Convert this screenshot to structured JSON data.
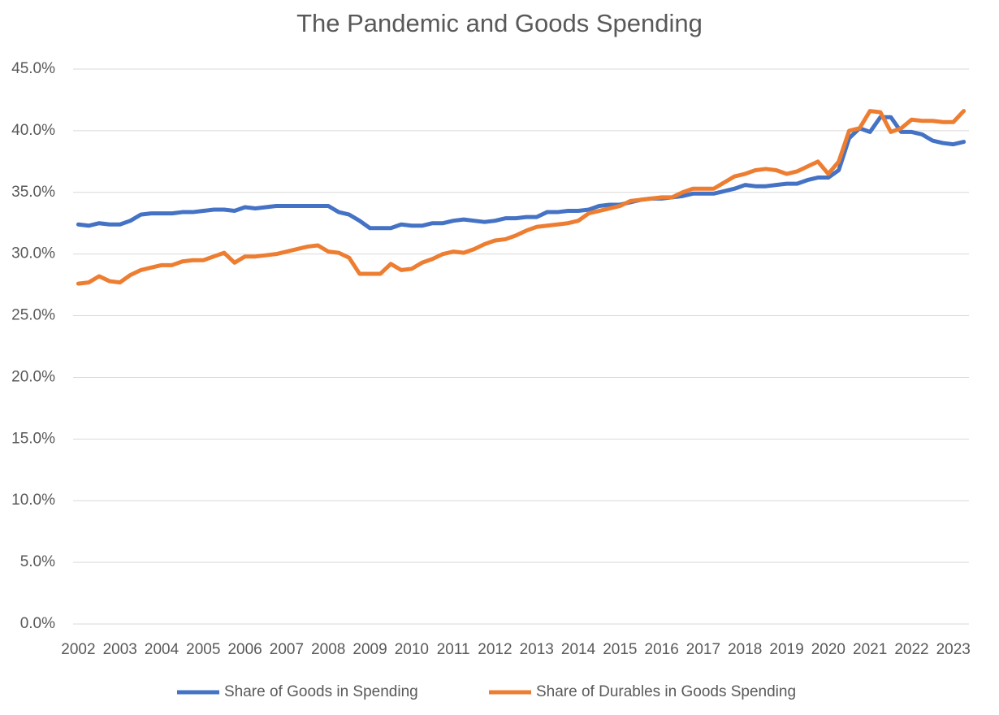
{
  "chart_data": {
    "type": "line",
    "title": "The Pandemic and Goods Spending",
    "categories": [
      "2002",
      null,
      null,
      null,
      "2003",
      null,
      null,
      null,
      "2004",
      null,
      null,
      null,
      "2005",
      null,
      null,
      null,
      "2006",
      null,
      null,
      null,
      "2007",
      null,
      null,
      null,
      "2008",
      null,
      null,
      null,
      "2009",
      null,
      null,
      null,
      "2010",
      null,
      null,
      null,
      "2011",
      null,
      null,
      null,
      "2012",
      null,
      null,
      null,
      "2013",
      null,
      null,
      null,
      "2014",
      null,
      null,
      null,
      "2015",
      null,
      null,
      null,
      "2016",
      null,
      null,
      null,
      "2017",
      null,
      null,
      null,
      "2018",
      null,
      null,
      null,
      "2019",
      null,
      null,
      null,
      "2020",
      null,
      null,
      null,
      "2021",
      null,
      null,
      null,
      "2022",
      null,
      null,
      null,
      "2023",
      null
    ],
    "series": [
      {
        "name": "Share of Goods in Spending",
        "color": "#4472c4",
        "values": [
          32.4,
          32.3,
          32.5,
          32.4,
          32.4,
          32.7,
          33.2,
          33.3,
          33.3,
          33.3,
          33.4,
          33.4,
          33.5,
          33.6,
          33.6,
          33.5,
          33.8,
          33.7,
          33.8,
          33.9,
          33.9,
          33.9,
          33.9,
          33.9,
          33.9,
          33.4,
          33.2,
          32.7,
          32.1,
          32.1,
          32.1,
          32.4,
          32.3,
          32.3,
          32.5,
          32.5,
          32.7,
          32.8,
          32.7,
          32.6,
          32.7,
          32.9,
          32.9,
          33.0,
          33.0,
          33.4,
          33.4,
          33.5,
          33.5,
          33.6,
          33.9,
          34.0,
          34.0,
          34.2,
          34.4,
          34.5,
          34.5,
          34.6,
          34.7,
          34.9,
          34.9,
          34.9,
          35.1,
          35.3,
          35.6,
          35.5,
          35.5,
          35.6,
          35.7,
          35.7,
          36.0,
          36.2,
          36.2,
          36.8,
          39.4,
          40.2,
          39.9,
          41.1,
          41.1,
          39.9,
          39.9,
          39.7,
          39.2,
          39.0,
          38.9,
          39.1
        ]
      },
      {
        "name": "Share of Durables in Goods Spending",
        "color": "#ed7d31",
        "values": [
          27.6,
          27.7,
          28.2,
          27.8,
          27.7,
          28.3,
          28.7,
          28.9,
          29.1,
          29.1,
          29.4,
          29.5,
          29.5,
          29.8,
          30.1,
          29.3,
          29.8,
          29.8,
          29.9,
          30.0,
          30.2,
          30.4,
          30.6,
          30.7,
          30.2,
          30.1,
          29.7,
          28.4,
          28.4,
          28.4,
          29.2,
          28.7,
          28.8,
          29.3,
          29.6,
          30.0,
          30.2,
          30.1,
          30.4,
          30.8,
          31.1,
          31.2,
          31.5,
          31.9,
          32.2,
          32.3,
          32.4,
          32.5,
          32.7,
          33.3,
          33.5,
          33.7,
          33.9,
          34.3,
          34.4,
          34.5,
          34.6,
          34.6,
          35.0,
          35.3,
          35.3,
          35.3,
          35.8,
          36.3,
          36.5,
          36.8,
          36.9,
          36.8,
          36.5,
          36.7,
          37.1,
          37.5,
          36.5,
          37.5,
          40.0,
          40.2,
          41.6,
          41.5,
          39.9,
          40.2,
          40.9,
          40.8,
          40.8,
          40.7,
          40.7,
          41.6
        ]
      }
    ],
    "ylim": [
      0,
      45
    ],
    "yticks": [
      {
        "value": 0,
        "label": "0.0%"
      },
      {
        "value": 5,
        "label": "5.0%"
      },
      {
        "value": 10,
        "label": "10.0%"
      },
      {
        "value": 15,
        "label": "15.0%"
      },
      {
        "value": 20,
        "label": "20.0%"
      },
      {
        "value": 25,
        "label": "25.0%"
      },
      {
        "value": 30,
        "label": "30.0%"
      },
      {
        "value": 35,
        "label": "35.0%"
      },
      {
        "value": 40,
        "label": "40.0%"
      },
      {
        "value": 45,
        "label": "45.0%"
      }
    ],
    "grid": true,
    "legend": "bottom"
  }
}
